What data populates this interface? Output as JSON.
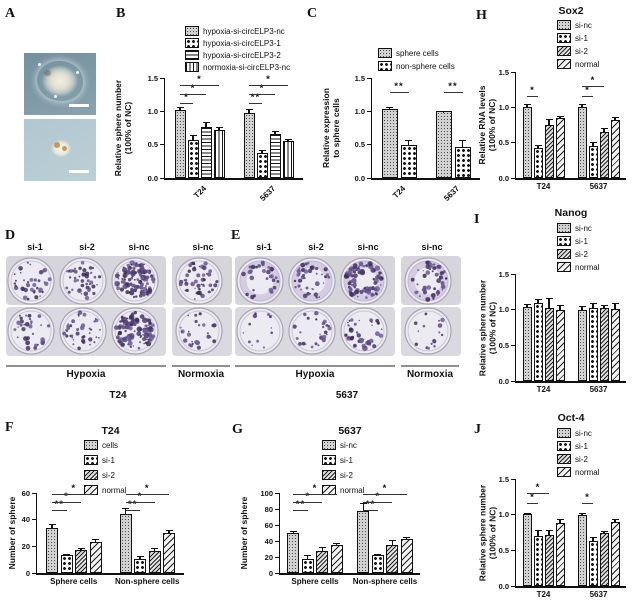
{
  "figure": {
    "panels": {
      "A": "A",
      "B": "B",
      "C": "C",
      "D": "D",
      "E": "E",
      "F": "F",
      "G": "G",
      "H": "H",
      "I": "I",
      "J": "J"
    }
  },
  "panelA": {
    "micrograph_top_bg": "#7b95a2",
    "micrograph_bottom_bg": "#b5cad3",
    "scale_bar_color": "#ffffff"
  },
  "plates": {
    "D": {
      "columns": [
        "si-1",
        "si-2",
        "si-nc",
        "si-nc"
      ],
      "groups": [
        "Hypoxia",
        "Normoxia"
      ],
      "cell_line": "T24",
      "colony_density": [
        [
          38,
          46,
          115,
          52
        ],
        [
          32,
          40,
          100,
          26
        ]
      ],
      "ring": false
    },
    "E": {
      "columns": [
        "si-1",
        "si-2",
        "si-nc",
        "si-nc"
      ],
      "groups": [
        "Hypoxia",
        "Normoxia"
      ],
      "cell_line": "5637",
      "colony_density": [
        [
          30,
          42,
          88,
          48
        ],
        [
          12,
          26,
          42,
          16
        ]
      ],
      "ring": true
    }
  },
  "chart_data": [
    {
      "panel": "B",
      "type": "bar",
      "title": "",
      "ylabel": "Relative sphere number",
      "ylabel2": "(100% of NC)",
      "ylim": [
        0,
        1.5
      ],
      "yticks": [
        "0.0",
        "0.5",
        "1.0",
        "1.5"
      ],
      "categories": [
        "T24",
        "5637"
      ],
      "series": [
        {
          "name": "hypoxia-si-circELP3-nc",
          "pattern": "stipple",
          "values": [
            1.02,
            0.98
          ],
          "errors": [
            0.05,
            0.05
          ]
        },
        {
          "name": "hypoxia-si-circELP3-1",
          "pattern": "checker",
          "values": [
            0.57,
            0.37
          ],
          "errors": [
            0.08,
            0.05
          ]
        },
        {
          "name": "hypoxia-si-circELP3-2",
          "pattern": "hlines",
          "values": [
            0.76,
            0.66
          ],
          "errors": [
            0.08,
            0.04
          ]
        },
        {
          "name": "normoxia-si-circELP3-nc",
          "pattern": "vlines",
          "values": [
            0.72,
            0.55
          ],
          "errors": [
            0.05,
            0.03
          ]
        }
      ],
      "sig": [
        {
          "group": 0,
          "from": 0,
          "to": 1,
          "label": "*",
          "tier": 0
        },
        {
          "group": 0,
          "from": 0,
          "to": 2,
          "label": "*",
          "tier": 1
        },
        {
          "group": 0,
          "from": 0,
          "to": 3,
          "label": "*",
          "tier": 2
        },
        {
          "group": 1,
          "from": 0,
          "to": 1,
          "label": "**",
          "tier": 0
        },
        {
          "group": 1,
          "from": 0,
          "to": 2,
          "label": "*",
          "tier": 1
        },
        {
          "group": 1,
          "from": 0,
          "to": 3,
          "label": "*",
          "tier": 2
        }
      ]
    },
    {
      "panel": "C",
      "type": "bar",
      "title": "",
      "ylabel": "Relative expression",
      "ylabel2": "to sphere cells",
      "ylim": [
        0,
        1.5
      ],
      "yticks": [
        "0.0",
        "0.5",
        "1.0",
        "1.5"
      ],
      "categories": [
        "T24",
        "5637"
      ],
      "series": [
        {
          "name": "sphere cells",
          "pattern": "stipple",
          "values": [
            1.04,
            1.0
          ],
          "errors": [
            0.02,
            0.01
          ]
        },
        {
          "name": "non-sphere cells",
          "pattern": "checker",
          "values": [
            0.49,
            0.46
          ],
          "errors": [
            0.08,
            0.11
          ]
        }
      ],
      "sig": [
        {
          "group": 0,
          "from": 0,
          "to": 1,
          "label": "**",
          "tier": 0
        },
        {
          "group": 1,
          "from": 0,
          "to": 1,
          "label": "**",
          "tier": 0
        }
      ]
    },
    {
      "panel": "F",
      "type": "bar",
      "title": "T24",
      "ylabel": "Number of sphere",
      "ylabel2": "",
      "ylim": [
        0,
        60
      ],
      "yticks": [
        "0",
        "20",
        "40",
        "60"
      ],
      "categories": [
        "Sphere cells",
        "Non-sphere cells"
      ],
      "series": [
        {
          "name": "cells",
          "pattern": "stipple",
          "values": [
            34,
            44
          ],
          "errors": [
            2.5,
            4.5
          ]
        },
        {
          "name": "si-1",
          "pattern": "checker",
          "values": [
            13.5,
            10.5
          ],
          "errors": [
            1,
            2
          ]
        },
        {
          "name": "si-2",
          "pattern": "diagA",
          "values": [
            17.5,
            16.5
          ],
          "errors": [
            1.5,
            2
          ]
        },
        {
          "name": "normal",
          "pattern": "diagB",
          "values": [
            23,
            30
          ],
          "errors": [
            2.5,
            2
          ]
        }
      ],
      "sig": [
        {
          "group": 0,
          "from": 0,
          "to": 1,
          "label": "**",
          "tier": 0
        },
        {
          "group": 0,
          "from": 0,
          "to": 2,
          "label": "*",
          "tier": 1
        },
        {
          "group": 0,
          "from": 0,
          "to": 3,
          "label": "*",
          "tier": 2
        },
        {
          "group": 1,
          "from": 0,
          "to": 1,
          "label": "**",
          "tier": 0
        },
        {
          "group": 1,
          "from": 0,
          "to": 2,
          "label": "*",
          "tier": 1
        },
        {
          "group": 1,
          "from": 0,
          "to": 3,
          "label": "*",
          "tier": 2
        }
      ]
    },
    {
      "panel": "G",
      "type": "bar",
      "title": "5637",
      "ylabel": "Number of sphere",
      "ylabel2": "",
      "ylim": [
        0,
        100
      ],
      "yticks": [
        "0",
        "20",
        "40",
        "60",
        "80",
        "100"
      ],
      "categories": [
        "Sphere cells",
        "Non-sphere cells"
      ],
      "series": [
        {
          "name": "si-nc",
          "pattern": "stipple",
          "values": [
            50,
            78
          ],
          "errors": [
            3,
            9
          ]
        },
        {
          "name": "si-1",
          "pattern": "checker",
          "values": [
            18,
            22
          ],
          "errors": [
            4,
            1.5
          ]
        },
        {
          "name": "si-2",
          "pattern": "diagA",
          "values": [
            27,
            35
          ],
          "errors": [
            5,
            6
          ]
        },
        {
          "name": "normal",
          "pattern": "diagB",
          "values": [
            35,
            42
          ],
          "errors": [
            3,
            3
          ]
        }
      ],
      "sig": [
        {
          "group": 0,
          "from": 0,
          "to": 1,
          "label": "**",
          "tier": 0
        },
        {
          "group": 0,
          "from": 0,
          "to": 2,
          "label": "*",
          "tier": 1
        },
        {
          "group": 0,
          "from": 0,
          "to": 3,
          "label": "*",
          "tier": 2
        },
        {
          "group": 1,
          "from": 0,
          "to": 1,
          "label": "**",
          "tier": 0
        },
        {
          "group": 1,
          "from": 0,
          "to": 2,
          "label": "*",
          "tier": 1
        },
        {
          "group": 1,
          "from": 0,
          "to": 3,
          "label": "*",
          "tier": 2
        }
      ]
    },
    {
      "panel": "H",
      "type": "bar",
      "title": "Sox2",
      "ylabel": "Relative RNA levels",
      "ylabel2": "(100% of NC)",
      "ylim": [
        0,
        1.5
      ],
      "yticks": [
        "0.0",
        "0.5",
        "1.0",
        "1.5"
      ],
      "categories": [
        "T24",
        "5637"
      ],
      "series": [
        {
          "name": "si-nc",
          "pattern": "stipple",
          "values": [
            1.0,
            1.0
          ],
          "errors": [
            0.05,
            0.05
          ]
        },
        {
          "name": "si-1",
          "pattern": "checker",
          "values": [
            0.42,
            0.45
          ],
          "errors": [
            0.04,
            0.06
          ]
        },
        {
          "name": "si-2",
          "pattern": "diagA",
          "values": [
            0.75,
            0.65
          ],
          "errors": [
            0.08,
            0.06
          ]
        },
        {
          "name": "normal",
          "pattern": "diagB",
          "values": [
            0.85,
            0.82
          ],
          "errors": [
            0.03,
            0.04
          ]
        }
      ],
      "sig": [
        {
          "group": 0,
          "from": 0,
          "to": 1,
          "label": "*",
          "tier": 0
        },
        {
          "group": 1,
          "from": 0,
          "to": 1,
          "label": "*",
          "tier": 0
        },
        {
          "group": 1,
          "from": 0,
          "to": 2,
          "label": "*",
          "tier": 1
        }
      ]
    },
    {
      "panel": "I",
      "type": "bar",
      "title": "Nanog",
      "ylabel": "Relative sphere number",
      "ylabel2": "(100% of NC)",
      "ylim": [
        0,
        1.5
      ],
      "yticks": [
        "0.0",
        "0.5",
        "1.0",
        "1.5"
      ],
      "categories": [
        "T24",
        "5637"
      ],
      "series": [
        {
          "name": "si-nc",
          "pattern": "stipple",
          "values": [
            1.04,
            1.0
          ],
          "errors": [
            0.04,
            0.05
          ]
        },
        {
          "name": "si-1",
          "pattern": "checker",
          "values": [
            1.1,
            1.03
          ],
          "errors": [
            0.05,
            0.06
          ]
        },
        {
          "name": "si-2",
          "pattern": "diagA",
          "values": [
            1.03,
            1.03
          ],
          "errors": [
            0.14,
            0.04
          ]
        },
        {
          "name": "normal",
          "pattern": "diagB",
          "values": [
            0.99,
            1.01
          ],
          "errors": [
            0.07,
            0.08
          ]
        }
      ],
      "sig": []
    },
    {
      "panel": "J",
      "type": "bar",
      "title": "Oct-4",
      "ylabel": "Relative sphere number",
      "ylabel2": "(100% of NC)",
      "ylim": [
        0,
        1.5
      ],
      "yticks": [
        "0.0",
        "0.5",
        "1.0",
        "1.5"
      ],
      "categories": [
        "T24",
        "5637"
      ],
      "series": [
        {
          "name": "si-nc",
          "pattern": "stipple",
          "values": [
            1.01,
            0.99
          ],
          "errors": [
            0.02,
            0.04
          ]
        },
        {
          "name": "si-1",
          "pattern": "checker",
          "values": [
            0.7,
            0.63
          ],
          "errors": [
            0.08,
            0.05
          ]
        },
        {
          "name": "si-2",
          "pattern": "diagA",
          "values": [
            0.71,
            0.74
          ],
          "errors": [
            0.07,
            0.03
          ]
        },
        {
          "name": "normal",
          "pattern": "diagB",
          "values": [
            0.89,
            0.9
          ],
          "errors": [
            0.05,
            0.04
          ]
        }
      ],
      "sig": [
        {
          "group": 0,
          "from": 0,
          "to": 1,
          "label": "*",
          "tier": 0
        },
        {
          "group": 0,
          "from": 0,
          "to": 2,
          "label": "*",
          "tier": 1
        },
        {
          "group": 1,
          "from": 0,
          "to": 1,
          "label": "*",
          "tier": 0
        }
      ]
    }
  ]
}
